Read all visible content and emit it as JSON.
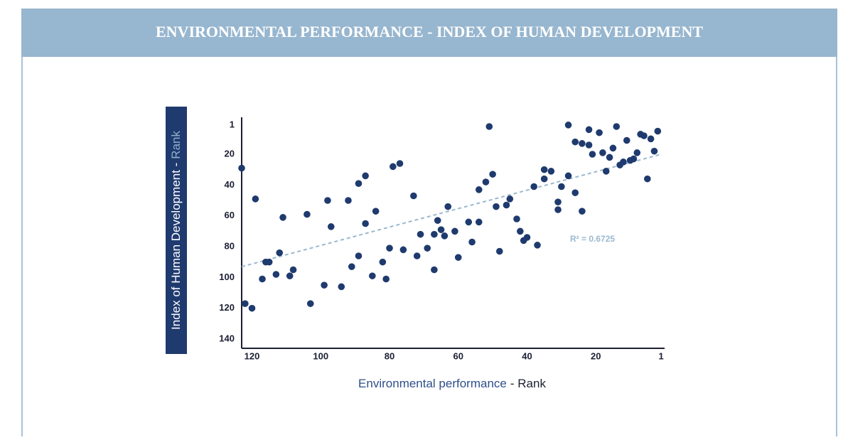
{
  "chart_data": {
    "type": "scatter",
    "title": "ENVIRONMENTAL PERFORMANCE - INDEX OF HUMAN DEVELOPMENT",
    "x_label": {
      "main": "Environmental performance",
      "accent": "- Rank"
    },
    "y_label": {
      "main": "Index of Human Development -",
      "accent": "Rank"
    },
    "xlim": [
      123,
      0
    ],
    "ylim": [
      146,
      -4
    ],
    "xticks": [
      120,
      100,
      80,
      60,
      40,
      20,
      1
    ],
    "yticks": [
      1,
      20,
      40,
      60,
      80,
      100,
      120,
      140
    ],
    "series": [
      {
        "color": "#1f3a6e",
        "x": [
          123,
          122,
          120,
          119,
          117,
          116,
          115,
          113,
          112,
          111,
          109,
          108,
          104,
          103,
          99,
          98,
          97,
          94,
          92,
          91,
          89,
          89,
          87,
          87,
          85,
          84,
          82,
          81,
          80,
          79,
          77,
          76,
          73,
          72,
          71,
          69,
          67,
          67,
          66,
          65,
          64,
          63,
          61,
          60,
          57,
          56,
          54,
          54,
          52,
          51,
          50,
          49,
          48,
          46,
          45,
          43,
          42,
          41,
          40,
          38,
          37,
          35,
          35,
          33,
          31,
          31,
          30,
          28,
          28,
          26,
          26,
          24,
          24,
          22,
          22,
          21,
          19,
          18,
          17,
          16,
          15,
          14,
          13,
          12,
          11,
          10,
          9,
          8,
          7,
          6,
          5,
          4,
          3,
          2
        ],
        "values": [
          29,
          117,
          120,
          49,
          101,
          90,
          90,
          98,
          84,
          61,
          99,
          95,
          59,
          117,
          105,
          50,
          67,
          106,
          50,
          93,
          86,
          39,
          34,
          65,
          99,
          57,
          90,
          101,
          81,
          28,
          26,
          82,
          47,
          86,
          72,
          81,
          95,
          72,
          63,
          69,
          73,
          54,
          70,
          87,
          64,
          77,
          64,
          43,
          38,
          2,
          33,
          54,
          83,
          53,
          49,
          62,
          70,
          76,
          74,
          41,
          79,
          36,
          30,
          31,
          56,
          51,
          41,
          1,
          34,
          12,
          45,
          13,
          57,
          14,
          4,
          20,
          6,
          19,
          31,
          22,
          16,
          2,
          27,
          25,
          11,
          24,
          23,
          19,
          7,
          8,
          36,
          10,
          18,
          5
        ]
      }
    ],
    "trendline": {
      "x": [
        123,
        1
      ],
      "y": [
        93,
        20
      ],
      "color": "#9bb8cf",
      "label": "R² = 0.6725"
    }
  }
}
